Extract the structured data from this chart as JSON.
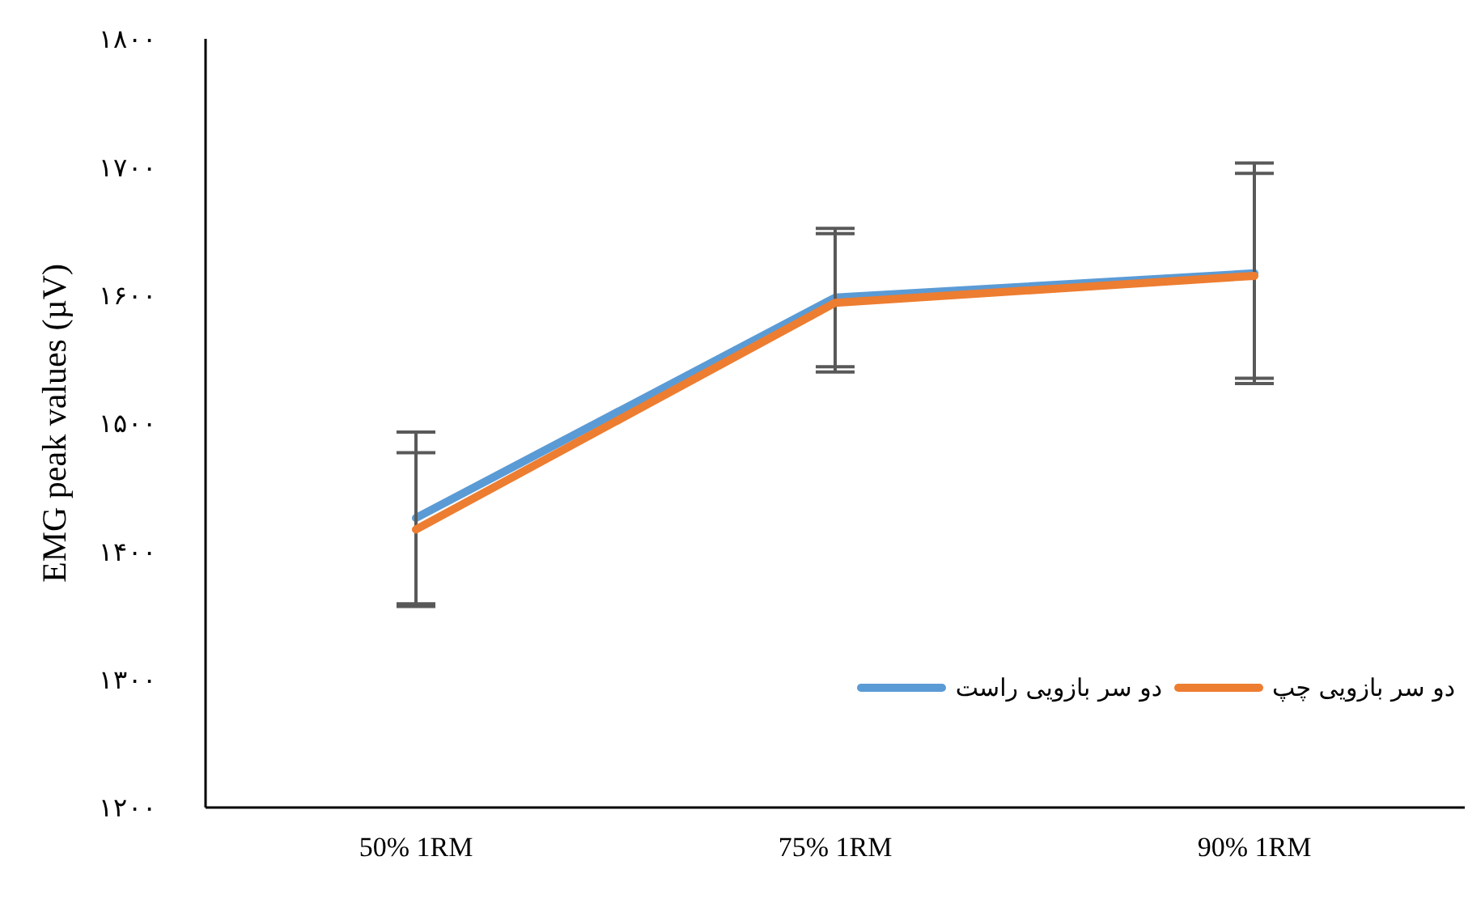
{
  "chart_data": {
    "type": "line",
    "ylabel": "EMG peak values (µV)",
    "categories": [
      "50% 1RM",
      "75% 1RM",
      "90% 1RM"
    ],
    "series": [
      {
        "name": "دو سر بازویی راست",
        "color": "#5b9bd5",
        "values": [
          1426,
          1598,
          1617
        ],
        "errors": [
          67,
          54,
          86
        ]
      },
      {
        "name": "دو سر بازویی چپ",
        "color": "#ed7d31",
        "values": [
          1417,
          1594,
          1615
        ],
        "errors": [
          60,
          54,
          80
        ]
      }
    ],
    "ylim": [
      1200,
      1800
    ],
    "yticks": [
      {
        "value": 1200,
        "label": "۱۲۰۰"
      },
      {
        "value": 1300,
        "label": "۱۳۰۰"
      },
      {
        "value": 1400,
        "label": "۱۴۰۰"
      },
      {
        "value": 1500,
        "label": "۱۵۰۰"
      },
      {
        "value": 1600,
        "label": "۱۶۰۰"
      },
      {
        "value": 1700,
        "label": "۱۷۰۰"
      },
      {
        "value": 1800,
        "label": "۱۸۰۰"
      }
    ],
    "legend": "bottom right"
  }
}
